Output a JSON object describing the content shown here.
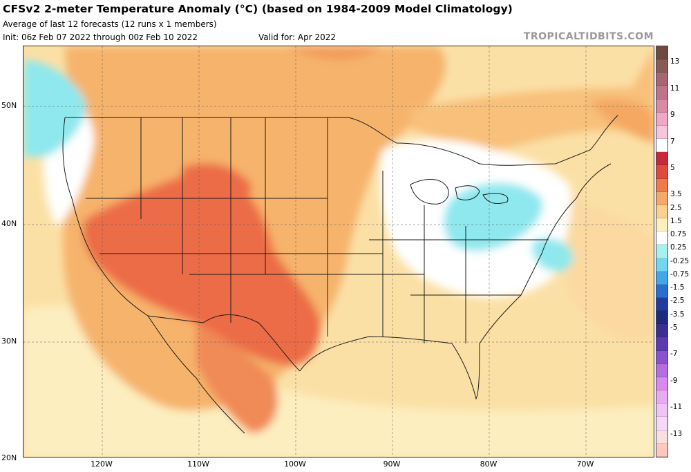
{
  "header": {
    "title": "CFSv2 2-meter Temperature Anomaly (°C) (based on 1984-2009 Model Climatology)",
    "subtitle": "Average of last 12 forecasts (12 runs x 1 members)",
    "init": "Init: 06z Feb 07 2022 through 00z Feb 10 2022",
    "valid": "Valid for: Apr 2022",
    "brand": "TROPICALTIDBITS.COM"
  },
  "axes": {
    "lat_labels": [
      "50N",
      "40N",
      "30N",
      "20N"
    ],
    "lon_labels": [
      "120W",
      "110W",
      "100W",
      "90W",
      "80W",
      "70W"
    ]
  },
  "legend": {
    "labels": [
      "13",
      "11",
      "9",
      "7",
      "5",
      "3.5",
      "2.5",
      "1.5",
      "0.75",
      "0.25",
      "-0.25",
      "-0.75",
      "-1.5",
      "-2.5",
      "-3.5",
      "-5",
      "-7",
      "-9",
      "-11",
      "-13"
    ],
    "colors": [
      "#6e4b3e",
      "#8a5a56",
      "#a66672",
      "#c0748c",
      "#d88aa6",
      "#f0a8c6",
      "#f7c6dc",
      "#ffffff",
      "#c9283a",
      "#e04a3a",
      "#ef7b4a",
      "#f6a76a",
      "#fad18e",
      "#fdf0bc",
      "#ffffff",
      "#a8f0f0",
      "#6fd8f0",
      "#42a6e8",
      "#2a6fd0",
      "#203c9e",
      "#1e2a7a",
      "#3a2e8e",
      "#5a3cb0",
      "#8a52d0",
      "#b46ee0",
      "#d88aee",
      "#e8aaf0",
      "#f0c4f4",
      "#f6d8f8",
      "#f8e0e0",
      "#fcc8c0"
    ]
  },
  "map": {
    "region": "Continental United States",
    "variable": "2-meter Temperature Anomaly"
  }
}
